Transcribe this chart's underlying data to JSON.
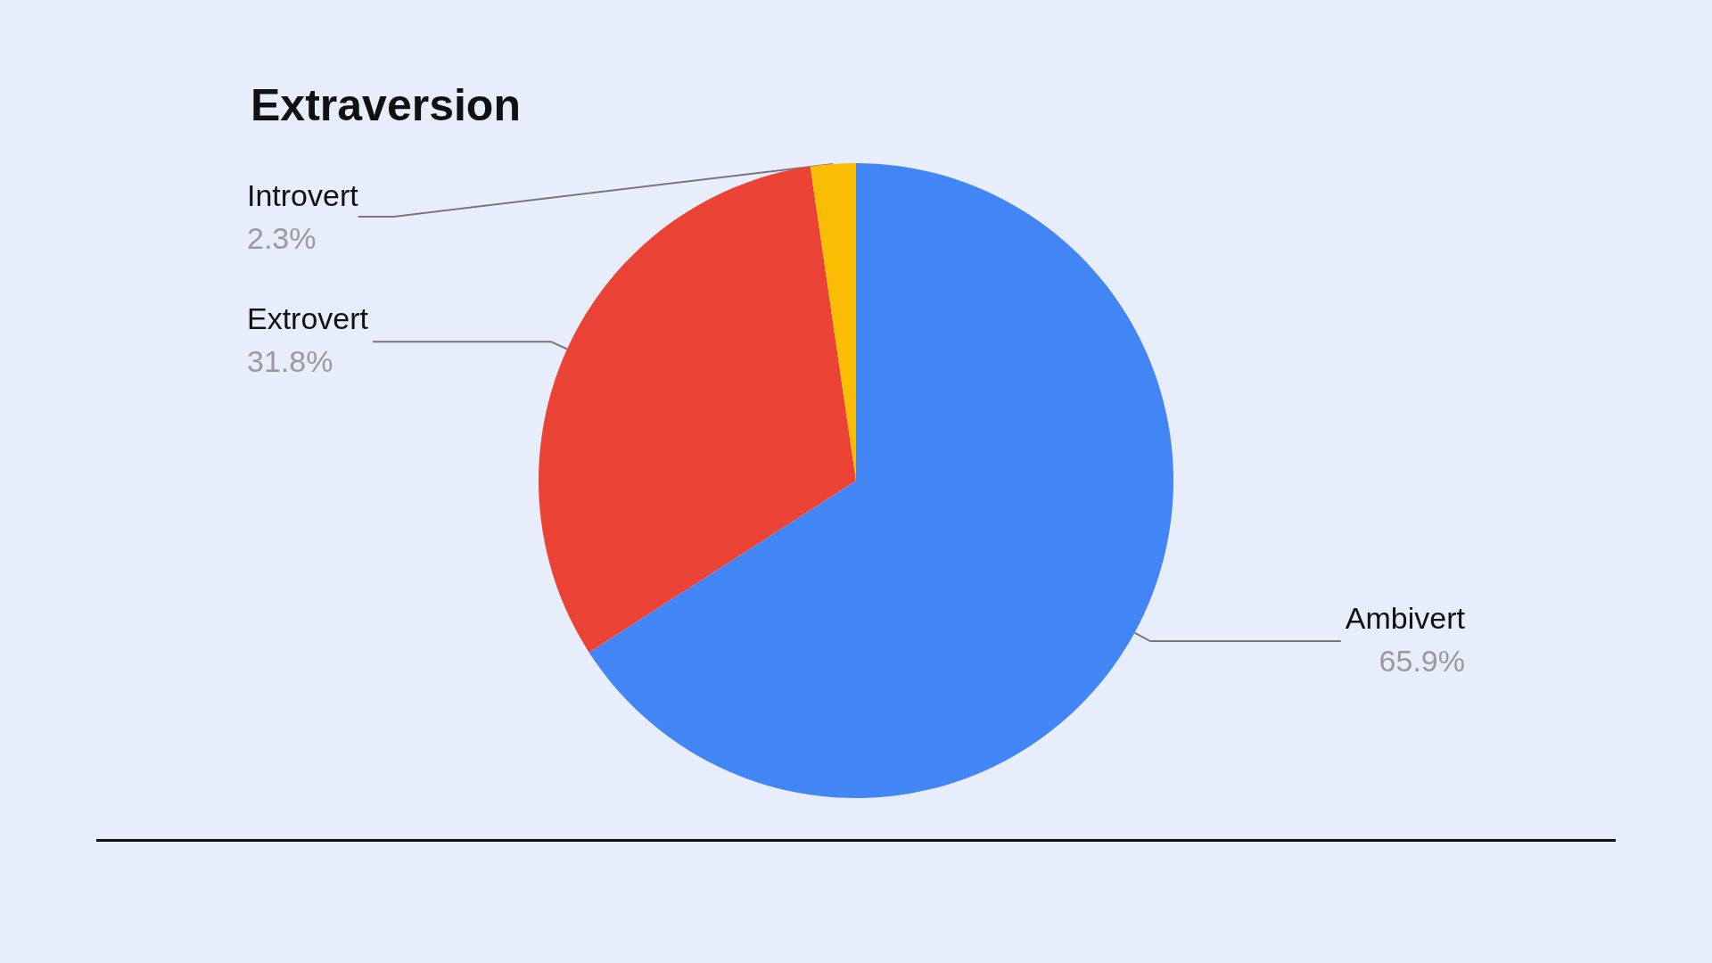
{
  "chart_data": {
    "type": "pie",
    "title": "Extraversion",
    "categories": [
      "Ambivert",
      "Extrovert",
      "Introvert"
    ],
    "values": [
      65.9,
      31.8,
      2.3
    ],
    "value_labels": [
      "65.9%",
      "31.8%",
      "2.3%"
    ],
    "colors": [
      "#4285f4",
      "#ea4335",
      "#fbbc04"
    ],
    "legend": false
  }
}
